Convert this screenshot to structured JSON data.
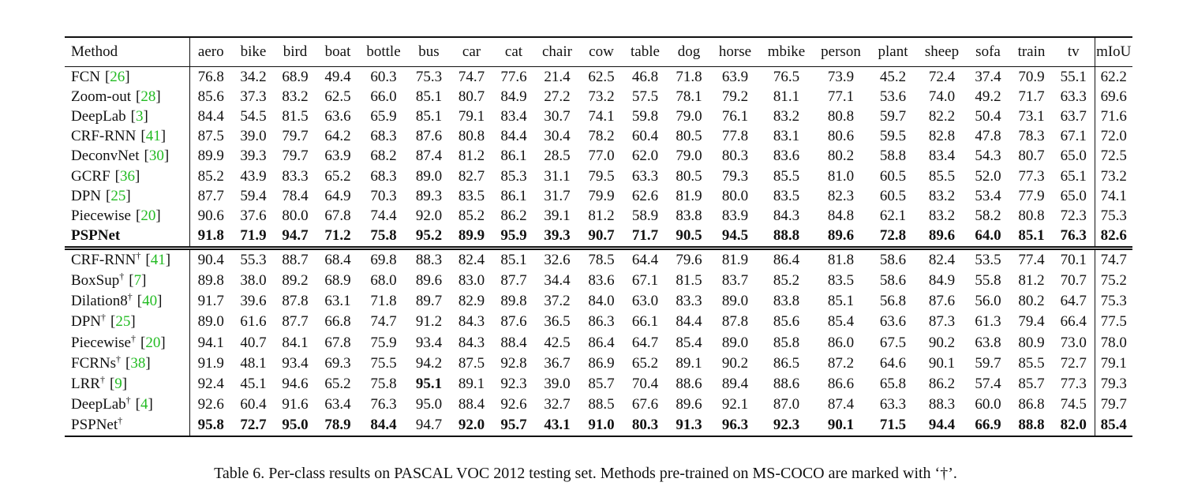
{
  "table": {
    "columns": [
      "Method",
      "aero",
      "bike",
      "bird",
      "boat",
      "bottle",
      "bus",
      "car",
      "cat",
      "chair",
      "cow",
      "table",
      "dog",
      "horse",
      "mbike",
      "person",
      "plant",
      "sheep",
      "sofa",
      "train",
      "tv",
      "mIoU"
    ],
    "cite_brackets": [
      "[",
      "]"
    ],
    "groups": [
      {
        "rows": [
          {
            "method": "FCN",
            "ref": "26",
            "values": [
              "76.8",
              "34.2",
              "68.9",
              "49.4",
              "60.3",
              "75.3",
              "74.7",
              "77.6",
              "21.4",
              "62.5",
              "46.8",
              "71.8",
              "63.9",
              "76.5",
              "73.9",
              "45.2",
              "72.4",
              "37.4",
              "70.9",
              "55.1",
              "62.2"
            ]
          },
          {
            "method": "Zoom-out",
            "ref": "28",
            "values": [
              "85.6",
              "37.3",
              "83.2",
              "62.5",
              "66.0",
              "85.1",
              "80.7",
              "84.9",
              "27.2",
              "73.2",
              "57.5",
              "78.1",
              "79.2",
              "81.1",
              "77.1",
              "53.6",
              "74.0",
              "49.2",
              "71.7",
              "63.3",
              "69.6"
            ]
          },
          {
            "method": "DeepLab",
            "ref": "3",
            "values": [
              "84.4",
              "54.5",
              "81.5",
              "63.6",
              "65.9",
              "85.1",
              "79.1",
              "83.4",
              "30.7",
              "74.1",
              "59.8",
              "79.0",
              "76.1",
              "83.2",
              "80.8",
              "59.7",
              "82.2",
              "50.4",
              "73.1",
              "63.7",
              "71.6"
            ]
          },
          {
            "method": "CRF-RNN",
            "ref": "41",
            "values": [
              "87.5",
              "39.0",
              "79.7",
              "64.2",
              "68.3",
              "87.6",
              "80.8",
              "84.4",
              "30.4",
              "78.2",
              "60.4",
              "80.5",
              "77.8",
              "83.1",
              "80.6",
              "59.5",
              "82.8",
              "47.8",
              "78.3",
              "67.1",
              "72.0"
            ]
          },
          {
            "method": "DeconvNet",
            "ref": "30",
            "values": [
              "89.9",
              "39.3",
              "79.7",
              "63.9",
              "68.2",
              "87.4",
              "81.2",
              "86.1",
              "28.5",
              "77.0",
              "62.0",
              "79.0",
              "80.3",
              "83.6",
              "80.2",
              "58.8",
              "83.4",
              "54.3",
              "80.7",
              "65.0",
              "72.5"
            ]
          },
          {
            "method": "GCRF",
            "ref": "36",
            "values": [
              "85.2",
              "43.9",
              "83.3",
              "65.2",
              "68.3",
              "89.0",
              "82.7",
              "85.3",
              "31.1",
              "79.5",
              "63.3",
              "80.5",
              "79.3",
              "85.5",
              "81.0",
              "60.5",
              "85.5",
              "52.0",
              "77.3",
              "65.1",
              "73.2"
            ]
          },
          {
            "method": "DPN",
            "ref": "25",
            "values": [
              "87.7",
              "59.4",
              "78.4",
              "64.9",
              "70.3",
              "89.3",
              "83.5",
              "86.1",
              "31.7",
              "79.9",
              "62.6",
              "81.9",
              "80.0",
              "83.5",
              "82.3",
              "60.5",
              "83.2",
              "53.4",
              "77.9",
              "65.0",
              "74.1"
            ]
          },
          {
            "method": "Piecewise",
            "ref": "20",
            "values": [
              "90.6",
              "37.6",
              "80.0",
              "67.8",
              "74.4",
              "92.0",
              "85.2",
              "86.2",
              "39.1",
              "81.2",
              "58.9",
              "83.8",
              "83.9",
              "84.3",
              "84.8",
              "62.1",
              "83.2",
              "58.2",
              "80.8",
              "72.3",
              "75.3"
            ]
          },
          {
            "method": "PSPNet",
            "values": [
              "91.8",
              "71.9",
              "94.7",
              "71.2",
              "75.8",
              "95.2",
              "89.9",
              "95.9",
              "39.3",
              "90.7",
              "71.7",
              "90.5",
              "94.5",
              "88.8",
              "89.6",
              "72.8",
              "89.6",
              "64.0",
              "85.1",
              "76.3",
              "82.6"
            ],
            "bold": [
              0,
              1,
              2,
              3,
              4,
              5,
              6,
              7,
              8,
              9,
              10,
              11,
              12,
              13,
              14,
              15,
              16,
              17,
              18,
              19,
              20
            ]
          }
        ]
      },
      {
        "rows": [
          {
            "method": "CRF-RNN",
            "mark": "†",
            "ref": "41",
            "values": [
              "90.4",
              "55.3",
              "88.7",
              "68.4",
              "69.8",
              "88.3",
              "82.4",
              "85.1",
              "32.6",
              "78.5",
              "64.4",
              "79.6",
              "81.9",
              "86.4",
              "81.8",
              "58.6",
              "82.4",
              "53.5",
              "77.4",
              "70.1",
              "74.7"
            ]
          },
          {
            "method": "BoxSup",
            "mark": "†",
            "ref": "7",
            "values": [
              "89.8",
              "38.0",
              "89.2",
              "68.9",
              "68.0",
              "89.6",
              "83.0",
              "87.7",
              "34.4",
              "83.6",
              "67.1",
              "81.5",
              "83.7",
              "85.2",
              "83.5",
              "58.6",
              "84.9",
              "55.8",
              "81.2",
              "70.7",
              "75.2"
            ]
          },
          {
            "method": "Dilation8",
            "mark": "†",
            "ref": "40",
            "values": [
              "91.7",
              "39.6",
              "87.8",
              "63.1",
              "71.8",
              "89.7",
              "82.9",
              "89.8",
              "37.2",
              "84.0",
              "63.0",
              "83.3",
              "89.0",
              "83.8",
              "85.1",
              "56.8",
              "87.6",
              "56.0",
              "80.2",
              "64.7",
              "75.3"
            ]
          },
          {
            "method": "DPN",
            "mark": "†",
            "ref": "25",
            "values": [
              "89.0",
              "61.6",
              "87.7",
              "66.8",
              "74.7",
              "91.2",
              "84.3",
              "87.6",
              "36.5",
              "86.3",
              "66.1",
              "84.4",
              "87.8",
              "85.6",
              "85.4",
              "63.6",
              "87.3",
              "61.3",
              "79.4",
              "66.4",
              "77.5"
            ]
          },
          {
            "method": "Piecewise",
            "mark": "†",
            "ref": "20",
            "values": [
              "94.1",
              "40.7",
              "84.1",
              "67.8",
              "75.9",
              "93.4",
              "84.3",
              "88.4",
              "42.5",
              "86.4",
              "64.7",
              "85.4",
              "89.0",
              "85.8",
              "86.0",
              "67.5",
              "90.2",
              "63.8",
              "80.9",
              "73.0",
              "78.0"
            ]
          },
          {
            "method": "FCRNs",
            "mark": "†",
            "ref": "38",
            "values": [
              "91.9",
              "48.1",
              "93.4",
              "69.3",
              "75.5",
              "94.2",
              "87.5",
              "92.8",
              "36.7",
              "86.9",
              "65.2",
              "89.1",
              "90.2",
              "86.5",
              "87.2",
              "64.6",
              "90.1",
              "59.7",
              "85.5",
              "72.7",
              "79.1"
            ]
          },
          {
            "method": "LRR",
            "mark": "†",
            "ref": "9",
            "values": [
              "92.4",
              "45.1",
              "94.6",
              "65.2",
              "75.8",
              "95.1",
              "89.1",
              "92.3",
              "39.0",
              "85.7",
              "70.4",
              "88.6",
              "89.4",
              "88.6",
              "86.6",
              "65.8",
              "86.2",
              "57.4",
              "85.7",
              "77.3",
              "79.3"
            ],
            "bold": [
              5
            ]
          },
          {
            "method": "DeepLab",
            "mark": "†",
            "ref": "4",
            "values": [
              "92.6",
              "60.4",
              "91.6",
              "63.4",
              "76.3",
              "95.0",
              "88.4",
              "92.6",
              "32.7",
              "88.5",
              "67.6",
              "89.6",
              "92.1",
              "87.0",
              "87.4",
              "63.3",
              "88.3",
              "60.0",
              "86.8",
              "74.5",
              "79.7"
            ]
          },
          {
            "method": "PSPNet",
            "mark": "†",
            "values": [
              "95.8",
              "72.7",
              "95.0",
              "78.9",
              "84.4",
              "94.7",
              "92.0",
              "95.7",
              "43.1",
              "91.0",
              "80.3",
              "91.3",
              "96.3",
              "92.3",
              "90.1",
              "71.5",
              "94.4",
              "66.9",
              "88.8",
              "82.0",
              "85.4"
            ],
            "bold": [
              0,
              1,
              2,
              3,
              4,
              6,
              7,
              8,
              9,
              10,
              11,
              12,
              13,
              14,
              15,
              16,
              17,
              18,
              19,
              20
            ]
          }
        ]
      }
    ]
  },
  "caption": "Table 6. Per-class results on PASCAL VOC 2012 testing set. Methods pre-trained on MS-COCO are marked with ‘†’."
}
